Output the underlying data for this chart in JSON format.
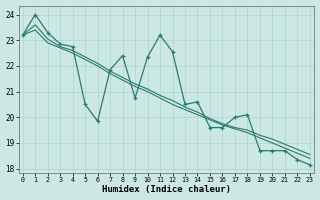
{
  "xlabel": "Humidex (Indice chaleur)",
  "bg_color": "#cce8e4",
  "grid_color": "#b0d4ce",
  "line_color": "#2a7a6e",
  "xlim": [
    -0.3,
    23.3
  ],
  "ylim": [
    17.85,
    24.35
  ],
  "yticks": [
    18,
    19,
    20,
    21,
    22,
    23,
    24
  ],
  "xticks": [
    0,
    1,
    2,
    3,
    4,
    5,
    6,
    7,
    8,
    9,
    10,
    11,
    12,
    13,
    14,
    15,
    16,
    17,
    18,
    19,
    20,
    21,
    22,
    23
  ],
  "line1_x": [
    0,
    1,
    2,
    3,
    4,
    5,
    6,
    7,
    8,
    9,
    10,
    11,
    12,
    13,
    14,
    15,
    16,
    17,
    18,
    19,
    20,
    21,
    22,
    23
  ],
  "line1_y": [
    23.2,
    24.0,
    23.3,
    22.85,
    22.75,
    20.5,
    19.85,
    21.85,
    22.4,
    20.75,
    22.35,
    23.2,
    22.55,
    20.5,
    20.6,
    19.6,
    19.6,
    20.0,
    20.1,
    18.7,
    18.7,
    18.7,
    18.35,
    18.15
  ],
  "line2_x": [
    0,
    1,
    2,
    3,
    4,
    5,
    6,
    7,
    8,
    9,
    10,
    11,
    12,
    13,
    14,
    15,
    16,
    17,
    18,
    19,
    20,
    21,
    22,
    23
  ],
  "line2_y": [
    23.2,
    23.6,
    23.05,
    22.75,
    22.6,
    22.35,
    22.1,
    21.8,
    21.55,
    21.3,
    21.1,
    20.85,
    20.65,
    20.4,
    20.2,
    19.95,
    19.75,
    19.6,
    19.5,
    19.3,
    19.15,
    18.95,
    18.75,
    18.55
  ],
  "line3_x": [
    0,
    1,
    2,
    3,
    4,
    5,
    6,
    7,
    8,
    9,
    10,
    11,
    12,
    13,
    14,
    15,
    16,
    17,
    18,
    19,
    20,
    21,
    22,
    23
  ],
  "line3_y": [
    23.2,
    23.4,
    22.9,
    22.7,
    22.5,
    22.25,
    22.0,
    21.7,
    21.45,
    21.2,
    21.0,
    20.75,
    20.5,
    20.3,
    20.1,
    19.9,
    19.7,
    19.55,
    19.4,
    19.2,
    19.0,
    18.8,
    18.6,
    18.4
  ]
}
